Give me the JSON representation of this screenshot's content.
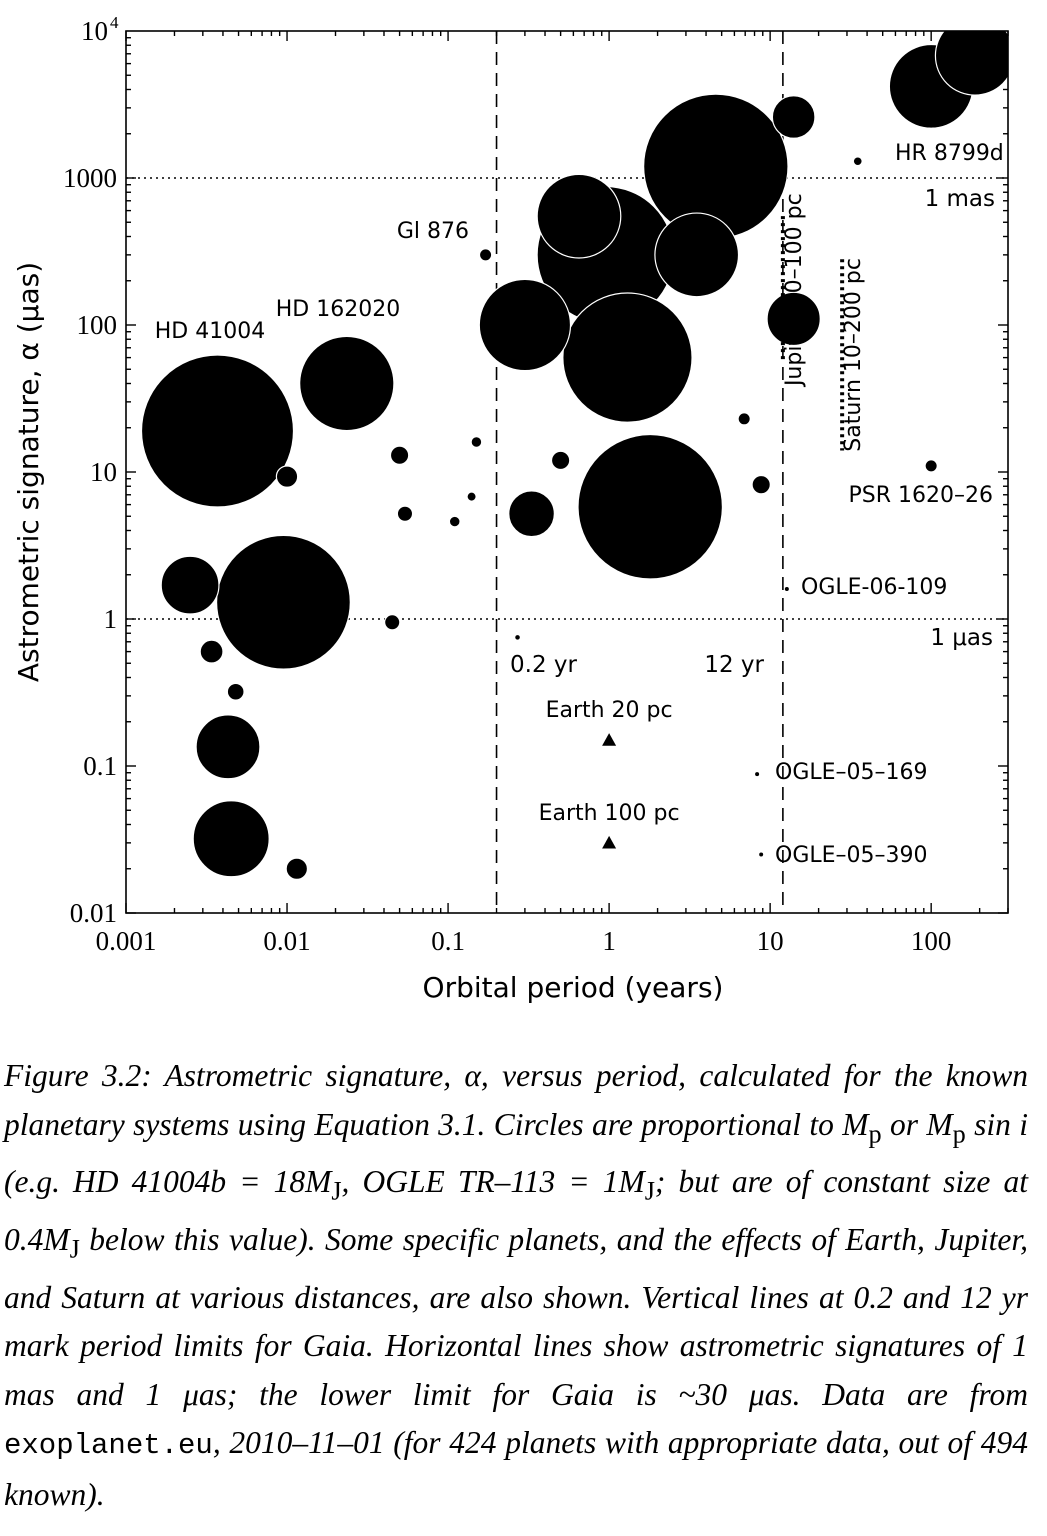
{
  "chart_data": {
    "type": "scatter",
    "title": "",
    "xlabel": "Orbital period (years)",
    "ylabel": "Astrometric signature, α (μas)",
    "xscale": "log",
    "yscale": "log",
    "xlim": [
      0.001,
      300
    ],
    "ylim": [
      0.01,
      10000
    ],
    "x_ticks": [
      0.001,
      0.01,
      0.1,
      1,
      10,
      100
    ],
    "x_tick_labels": [
      "0.001",
      "0.01",
      "0.1",
      "1",
      "10",
      "100"
    ],
    "y_ticks": [
      0.01,
      0.1,
      1,
      10,
      100,
      1000,
      10000
    ],
    "y_tick_labels": [
      "0.01",
      "0.1",
      "1",
      "10",
      "100",
      "1000",
      "10^4"
    ],
    "reference_lines": [
      {
        "orientation": "vertical",
        "value": 0.2,
        "style": "dashed",
        "label": "0.2 yr"
      },
      {
        "orientation": "vertical",
        "value": 12,
        "style": "dashed",
        "label": "12 yr"
      },
      {
        "orientation": "horizontal",
        "value": 1000,
        "style": "dotted",
        "label": "1 mas"
      },
      {
        "orientation": "horizontal",
        "value": 1,
        "style": "dotted",
        "label": "1 μas"
      }
    ],
    "series": [
      {
        "marker": "circle",
        "points": [
          {
            "x": 0.0037,
            "y": 19,
            "r": 1.0
          },
          {
            "x": 0.0235,
            "y": 40,
            "r": 0.62
          },
          {
            "x": 0.0095,
            "y": 1.3,
            "r": 0.88
          },
          {
            "x": 4.6,
            "y": 1200,
            "r": 0.95
          },
          {
            "x": 1.8,
            "y": 5.8,
            "r": 0.95
          },
          {
            "x": 0.95,
            "y": 300,
            "r": 0.9
          },
          {
            "x": 0.65,
            "y": 550,
            "r": 0.55
          },
          {
            "x": 1.3,
            "y": 60,
            "r": 0.85
          },
          {
            "x": 0.3,
            "y": 100,
            "r": 0.6
          },
          {
            "x": 3.5,
            "y": 300,
            "r": 0.55
          },
          {
            "x": 0.0025,
            "y": 1.7,
            "r": 0.38
          },
          {
            "x": 187,
            "y": 6800,
            "r": 0.52
          },
          {
            "x": 100,
            "y": 4200,
            "r": 0.55
          },
          {
            "x": 14,
            "y": 2600,
            "r": 0.28
          },
          {
            "x": 14,
            "y": 110,
            "r": 0.35
          },
          {
            "x": 0.0043,
            "y": 0.135,
            "r": 0.42
          },
          {
            "x": 0.0045,
            "y": 0.032,
            "r": 0.5
          },
          {
            "x": 0.33,
            "y": 5.2,
            "r": 0.3
          },
          {
            "x": 0.5,
            "y": 12,
            "r": 0.12
          },
          {
            "x": 0.05,
            "y": 13,
            "r": 0.12
          },
          {
            "x": 0.054,
            "y": 5.2,
            "r": 0.1
          },
          {
            "x": 0.11,
            "y": 4.6,
            "r": 0.07
          },
          {
            "x": 0.15,
            "y": 16,
            "r": 0.07
          },
          {
            "x": 0.14,
            "y": 6.8,
            "r": 0.06
          },
          {
            "x": 0.0034,
            "y": 0.6,
            "r": 0.15
          },
          {
            "x": 0.0048,
            "y": 0.32,
            "r": 0.11
          },
          {
            "x": 0.0115,
            "y": 0.02,
            "r": 0.14
          },
          {
            "x": 8.8,
            "y": 8.2,
            "r": 0.12
          },
          {
            "x": 0.01,
            "y": 9.3,
            "r": 0.14
          },
          {
            "x": 0.045,
            "y": 0.95,
            "r": 0.1
          },
          {
            "x": 0.171,
            "y": 300,
            "r": 0.08
          },
          {
            "x": 35,
            "y": 1300,
            "r": 0.05
          },
          {
            "x": 100,
            "y": 11,
            "r": 0.08
          },
          {
            "x": 6.9,
            "y": 23,
            "r": 0.08
          },
          {
            "x": 0.27,
            "y": 0.75,
            "r": 0.03
          },
          {
            "x": 12.7,
            "y": 1.6,
            "r": 0.02
          },
          {
            "x": 8.3,
            "y": 0.088,
            "r": 0.015
          },
          {
            "x": 8.8,
            "y": 0.025,
            "r": 0.015
          }
        ]
      },
      {
        "name": "Earth",
        "marker": "triangle",
        "points": [
          {
            "x": 1,
            "y": 0.15,
            "label": "Earth 20 pc"
          },
          {
            "x": 1,
            "y": 0.03,
            "label": "Earth 100 pc"
          }
        ]
      },
      {
        "name": "Jupiter",
        "marker": "dotted-range",
        "points": [
          {
            "x": 12,
            "y_range": [
              55,
              550
            ],
            "label": "Jupiter 10–100 pc"
          }
        ]
      },
      {
        "name": "Saturn",
        "marker": "dotted-range",
        "points": [
          {
            "x": 28,
            "y_range": [
              14,
              280
            ],
            "label": "Saturn 10–200 pc"
          }
        ]
      }
    ],
    "annotations": [
      {
        "text": "HD 41004",
        "x": 0.0037,
        "y": 125
      },
      {
        "text": "HD 162020",
        "x": 0.0235,
        "y": 185
      },
      {
        "text": "Gl 876",
        "x": 0.085,
        "y": 350
      },
      {
        "text": "HR 8799d",
        "x": 100,
        "y": 1300
      },
      {
        "text": "PSR 1620–26",
        "x": 100,
        "y": 8.5
      },
      {
        "text": "OGLE-06-109",
        "x": 25,
        "y": 1.6
      },
      {
        "text": "OGLE–05–169",
        "x": 25,
        "y": 0.088
      },
      {
        "text": "OGLE–05–390",
        "x": 25,
        "y": 0.025
      }
    ]
  },
  "caption": {
    "label": "Figure 3.2:",
    "line1": "Astrometric signature, α, versus period, calculated for the known planetary systems using Equation 3.1. Circles are proportional to M",
    "p1": "p",
    "or": " or M",
    "p2": "p",
    "sini": " sin i",
    "eg": " (e.g. HD 41004b = 18M",
    "j1": "J",
    "ogle": ", OGLE TR–113 = 1M",
    "j2": "J",
    "const": "; but are of constant size at 0.4M",
    "j3": "J",
    "rest1": " below this value). Some specific planets, and the effects of Earth, Jupiter, and Saturn at various distances, are also shown. Vertical lines at 0.2 and 12 yr mark period limits for Gaia. Horizontal lines show astrometric signatures of 1 mas and 1 μas; the lower limit for Gaia is ~30 μas. Data are from ",
    "source": "exoplanet.eu",
    "rest2": ", 2010–11–01 (for 424 planets with appropriate data, out of 494 known)."
  }
}
